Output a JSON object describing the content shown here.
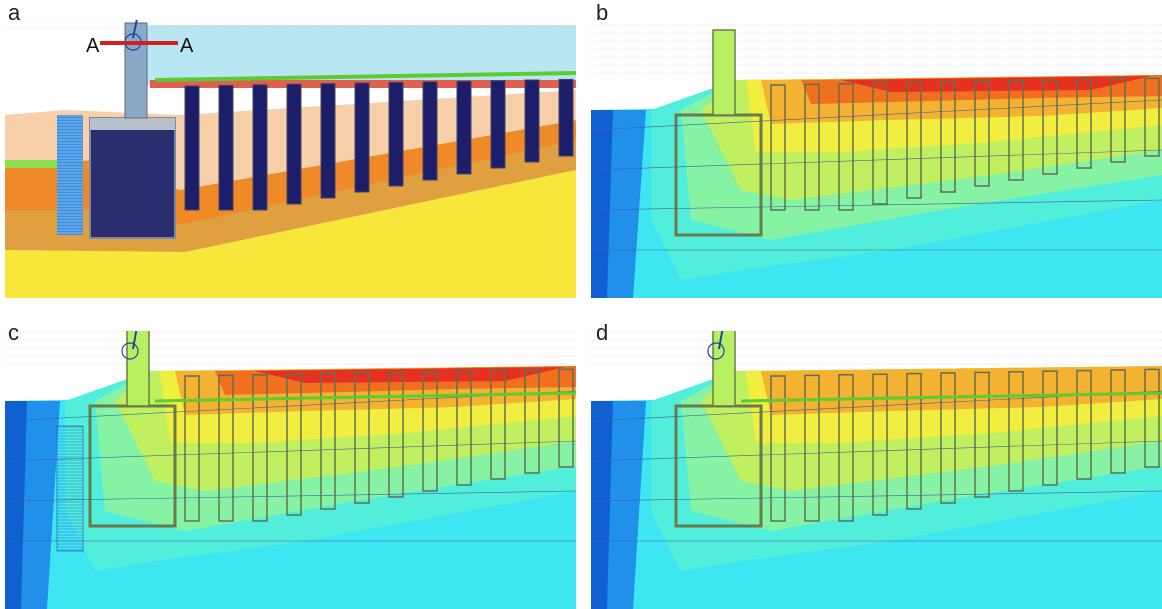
{
  "panels": [
    {
      "label": "a",
      "section": {
        "left": "A",
        "right": "A"
      }
    },
    {
      "label": "b"
    },
    {
      "label": "c"
    },
    {
      "label": "d"
    }
  ]
}
